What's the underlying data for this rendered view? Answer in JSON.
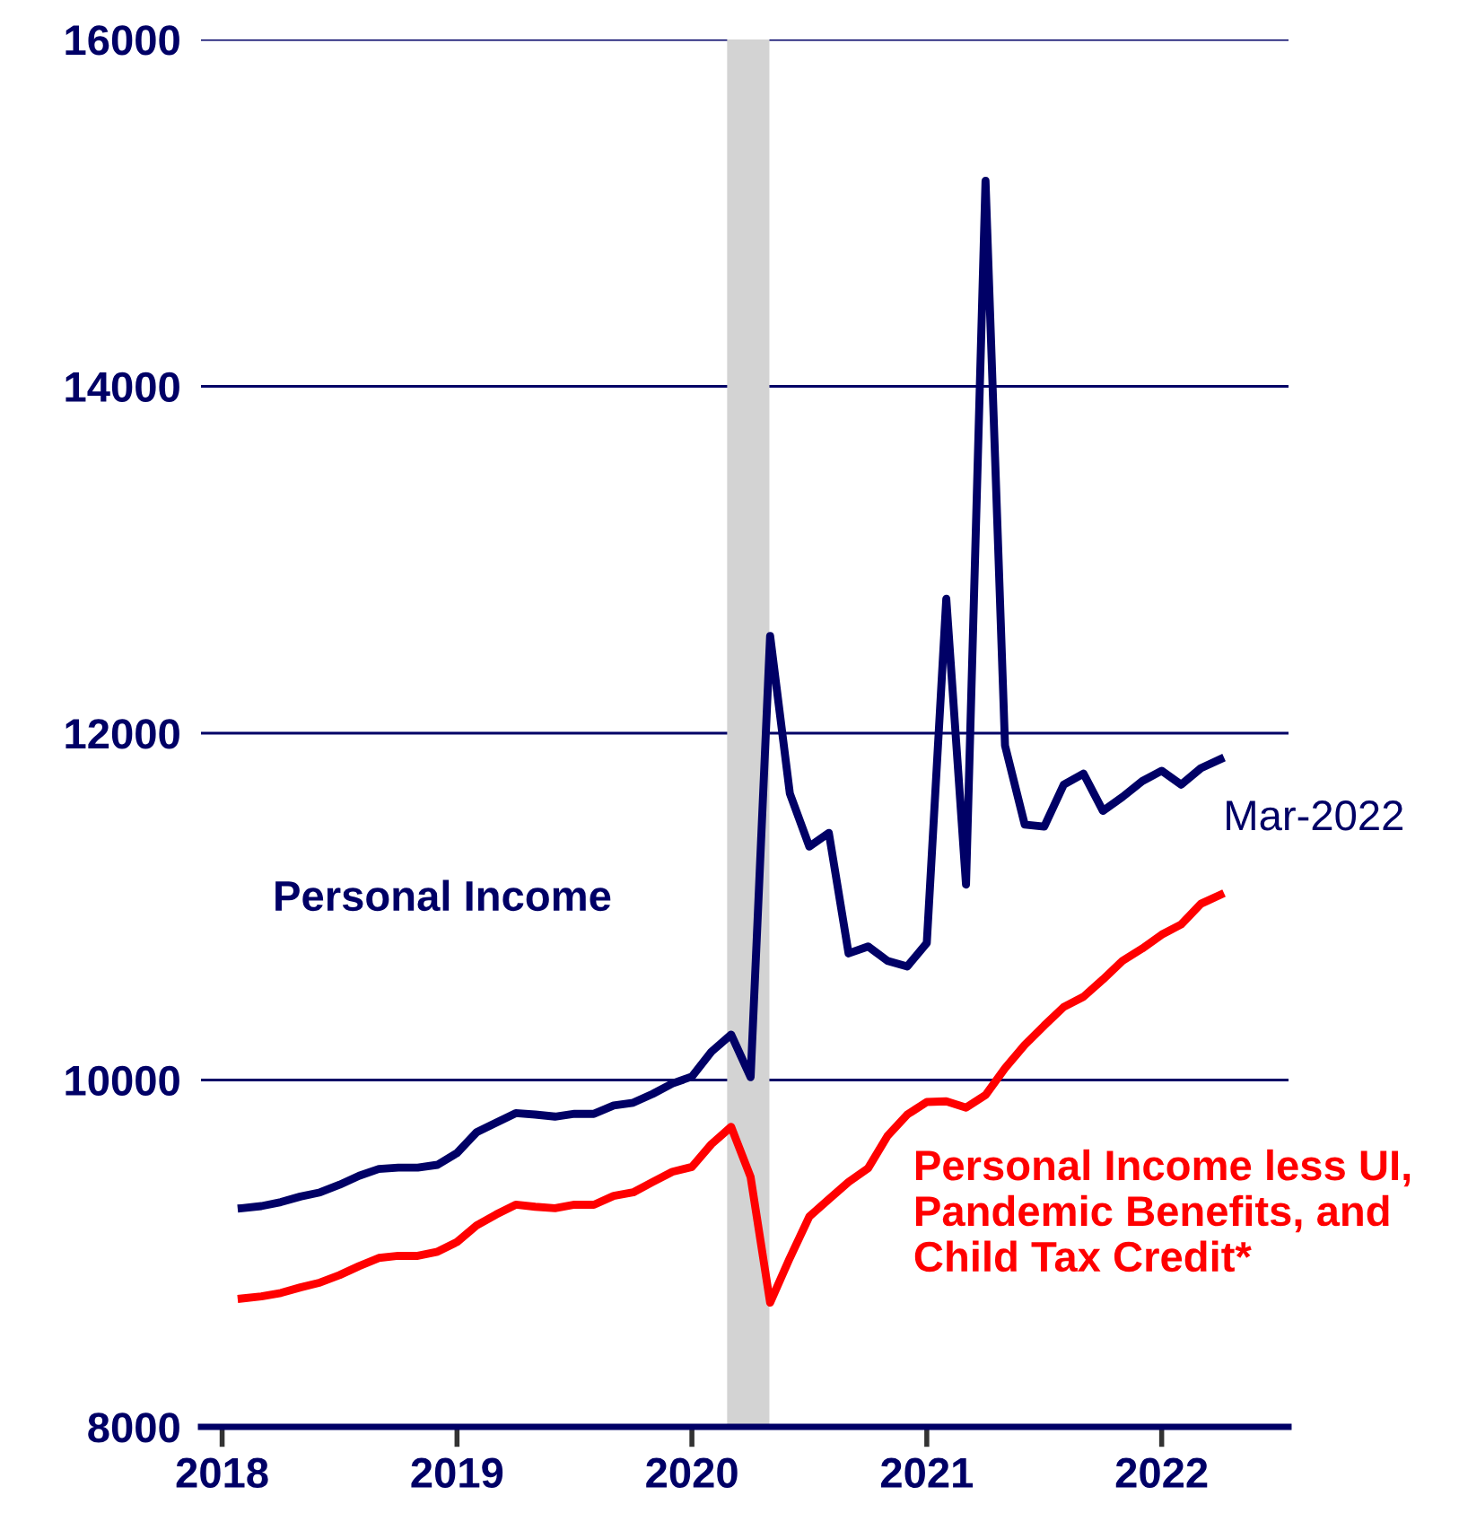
{
  "chart_data": {
    "type": "line",
    "x": [
      2018.083,
      2018.167,
      2018.25,
      2018.333,
      2018.417,
      2018.5,
      2018.583,
      2018.667,
      2018.75,
      2018.833,
      2018.917,
      2019.0,
      2019.083,
      2019.167,
      2019.25,
      2019.333,
      2019.417,
      2019.5,
      2019.583,
      2019.667,
      2019.75,
      2019.833,
      2019.917,
      2020.0,
      2020.083,
      2020.167,
      2020.25,
      2020.333,
      2020.417,
      2020.5,
      2020.583,
      2020.667,
      2020.75,
      2020.833,
      2020.917,
      2021.0,
      2021.083,
      2021.167,
      2021.25,
      2021.333,
      2021.417,
      2021.5,
      2021.583,
      2021.667,
      2021.75,
      2021.833,
      2021.917,
      2022.0,
      2022.083,
      2022.167,
      2022.25
    ],
    "series": [
      {
        "name": "Personal Income",
        "color": "#000066",
        "values": [
          9261,
          9273,
          9296,
          9328,
          9352,
          9396,
          9448,
          9487,
          9495,
          9495,
          9511,
          9579,
          9698,
          9754,
          9809,
          9801,
          9789,
          9805,
          9805,
          9853,
          9869,
          9920,
          9980,
          10020,
          10163,
          10262,
          10016,
          12561,
          11652,
          11346,
          11425,
          10730,
          10770,
          10687,
          10655,
          10790,
          12775,
          11127,
          15185,
          11929,
          11473,
          11461,
          11703,
          11767,
          11552,
          11632,
          11723,
          11783,
          11703,
          11798,
          11850
        ]
      },
      {
        "name": "Personal Income less UI, Pandemic Benefits, and Child Tax Credit*",
        "color": "#ff0000",
        "values": [
          8740,
          8752,
          8772,
          8804,
          8832,
          8875,
          8927,
          8974,
          8986,
          8986,
          9010,
          9066,
          9161,
          9225,
          9281,
          9269,
          9261,
          9281,
          9281,
          9332,
          9352,
          9412,
          9471,
          9499,
          9630,
          9730,
          9440,
          8716,
          8974,
          9213,
          9312,
          9412,
          9491,
          9678,
          9801,
          9873,
          9877,
          9841,
          9913,
          10068,
          10202,
          10314,
          10421,
          10480,
          10580,
          10687,
          10758,
          10838,
          10897,
          11016,
          11068
        ]
      }
    ],
    "xlim": [
      2017.91,
      2022.54
    ],
    "xticks": [
      2018,
      2019,
      2020,
      2021,
      2022
    ],
    "ylim": [
      8000,
      16000
    ],
    "yticks": [
      8000,
      10000,
      12000,
      14000,
      16000
    ],
    "grid": "y",
    "bands": [
      {
        "axis": "x",
        "from": 2020.15,
        "to": 2020.33,
        "color": "#d3d3d3"
      }
    ],
    "annotations": [
      "Mar-2022"
    ],
    "legend": false,
    "line_style": "solid",
    "marker": "none"
  }
}
